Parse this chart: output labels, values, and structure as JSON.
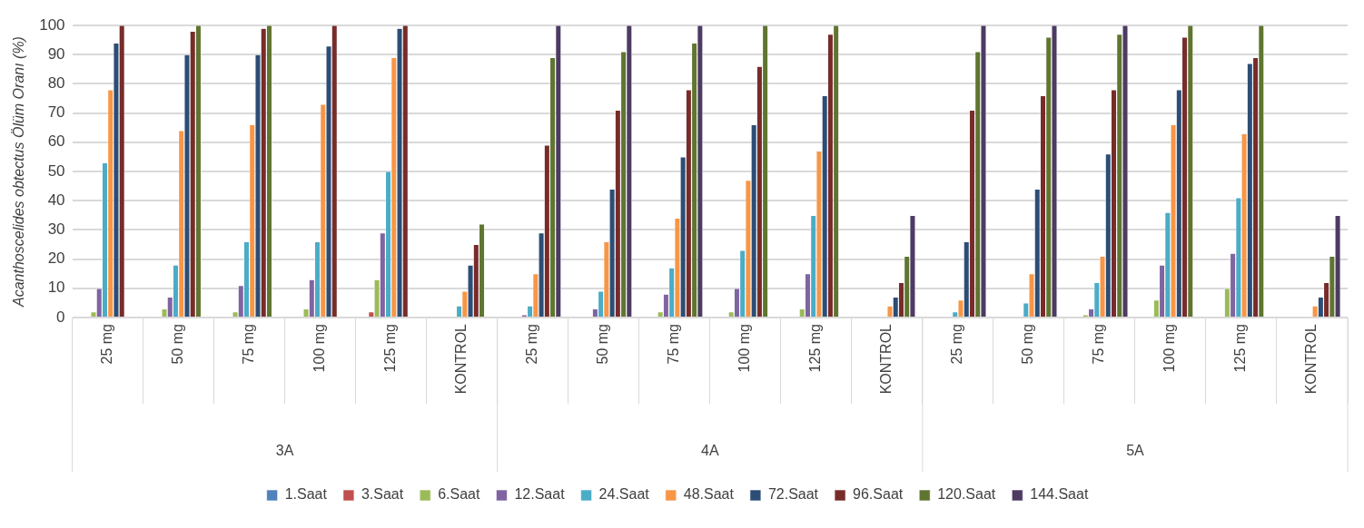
{
  "chart_data": {
    "type": "bar",
    "ylabel": "Acanthoscelides obtectus Ölüm Oranı (%)",
    "categories": [
      "25 mg",
      "50 mg",
      "75 mg",
      "100 mg",
      "125 mg",
      "KONTROL",
      "25 mg",
      "50 mg",
      "75 mg",
      "100 mg",
      "125 mg",
      "KONTROL",
      "25 mg",
      "50 mg",
      "75 mg",
      "100 mg",
      "125 mg",
      "KONTROL"
    ],
    "annotations": [
      "3A",
      "4A",
      "5A"
    ],
    "series": [
      {
        "name": "1.Saat",
        "color": "#4f81bd",
        "values": [
          0,
          0,
          0,
          0,
          0,
          0,
          0,
          0,
          0,
          0,
          0,
          0,
          0,
          0,
          0,
          0,
          0,
          0
        ]
      },
      {
        "name": "3.Saat",
        "color": "#c0504d",
        "values": [
          0,
          0,
          0,
          0,
          2,
          0,
          0,
          0,
          0,
          0,
          0,
          0,
          0,
          0,
          0,
          0,
          0,
          0
        ]
      },
      {
        "name": "6.Saat",
        "color": "#9bbb59",
        "values": [
          2,
          3,
          2,
          3,
          13,
          0,
          0,
          0,
          2,
          2,
          3,
          0,
          0,
          0,
          1,
          6,
          10,
          0
        ]
      },
      {
        "name": "12.Saat",
        "color": "#8064a2",
        "values": [
          10,
          7,
          11,
          13,
          29,
          0,
          1,
          3,
          8,
          10,
          15,
          0,
          0,
          0,
          3,
          18,
          22,
          0
        ]
      },
      {
        "name": "24.Saat",
        "color": "#4bacc6",
        "values": [
          53,
          18,
          26,
          26,
          50,
          4,
          4,
          9,
          17,
          23,
          35,
          0,
          2,
          5,
          12,
          36,
          41,
          0
        ]
      },
      {
        "name": "48.Saat",
        "color": "#f79646",
        "values": [
          78,
          64,
          66,
          73,
          89,
          9,
          15,
          26,
          34,
          47,
          57,
          4,
          6,
          15,
          21,
          66,
          63,
          4
        ]
      },
      {
        "name": "72.Saat",
        "color": "#2c4d75",
        "values": [
          94,
          90,
          90,
          93,
          99,
          18,
          29,
          44,
          55,
          66,
          76,
          7,
          26,
          44,
          56,
          78,
          87,
          7
        ]
      },
      {
        "name": "96.Saat",
        "color": "#772c2a",
        "values": [
          100,
          98,
          99,
          100,
          100,
          25,
          59,
          71,
          78,
          86,
          97,
          12,
          71,
          76,
          78,
          96,
          89,
          12
        ]
      },
      {
        "name": "120.Saat",
        "color": "#5f7530",
        "values": [
          null,
          100,
          100,
          null,
          null,
          32,
          89,
          91,
          94,
          100,
          100,
          21,
          91,
          96,
          97,
          100,
          100,
          21
        ]
      },
      {
        "name": "144.Saat",
        "color": "#4d3b62",
        "values": [
          null,
          null,
          null,
          null,
          null,
          null,
          100,
          100,
          100,
          null,
          null,
          35,
          100,
          100,
          100,
          null,
          null,
          35
        ]
      }
    ],
    "ylim": [
      0,
      100
    ],
    "yticks": [
      0,
      10,
      20,
      30,
      40,
      50,
      60,
      70,
      80,
      90,
      100
    ],
    "grid": "y",
    "legend": "bottom"
  }
}
